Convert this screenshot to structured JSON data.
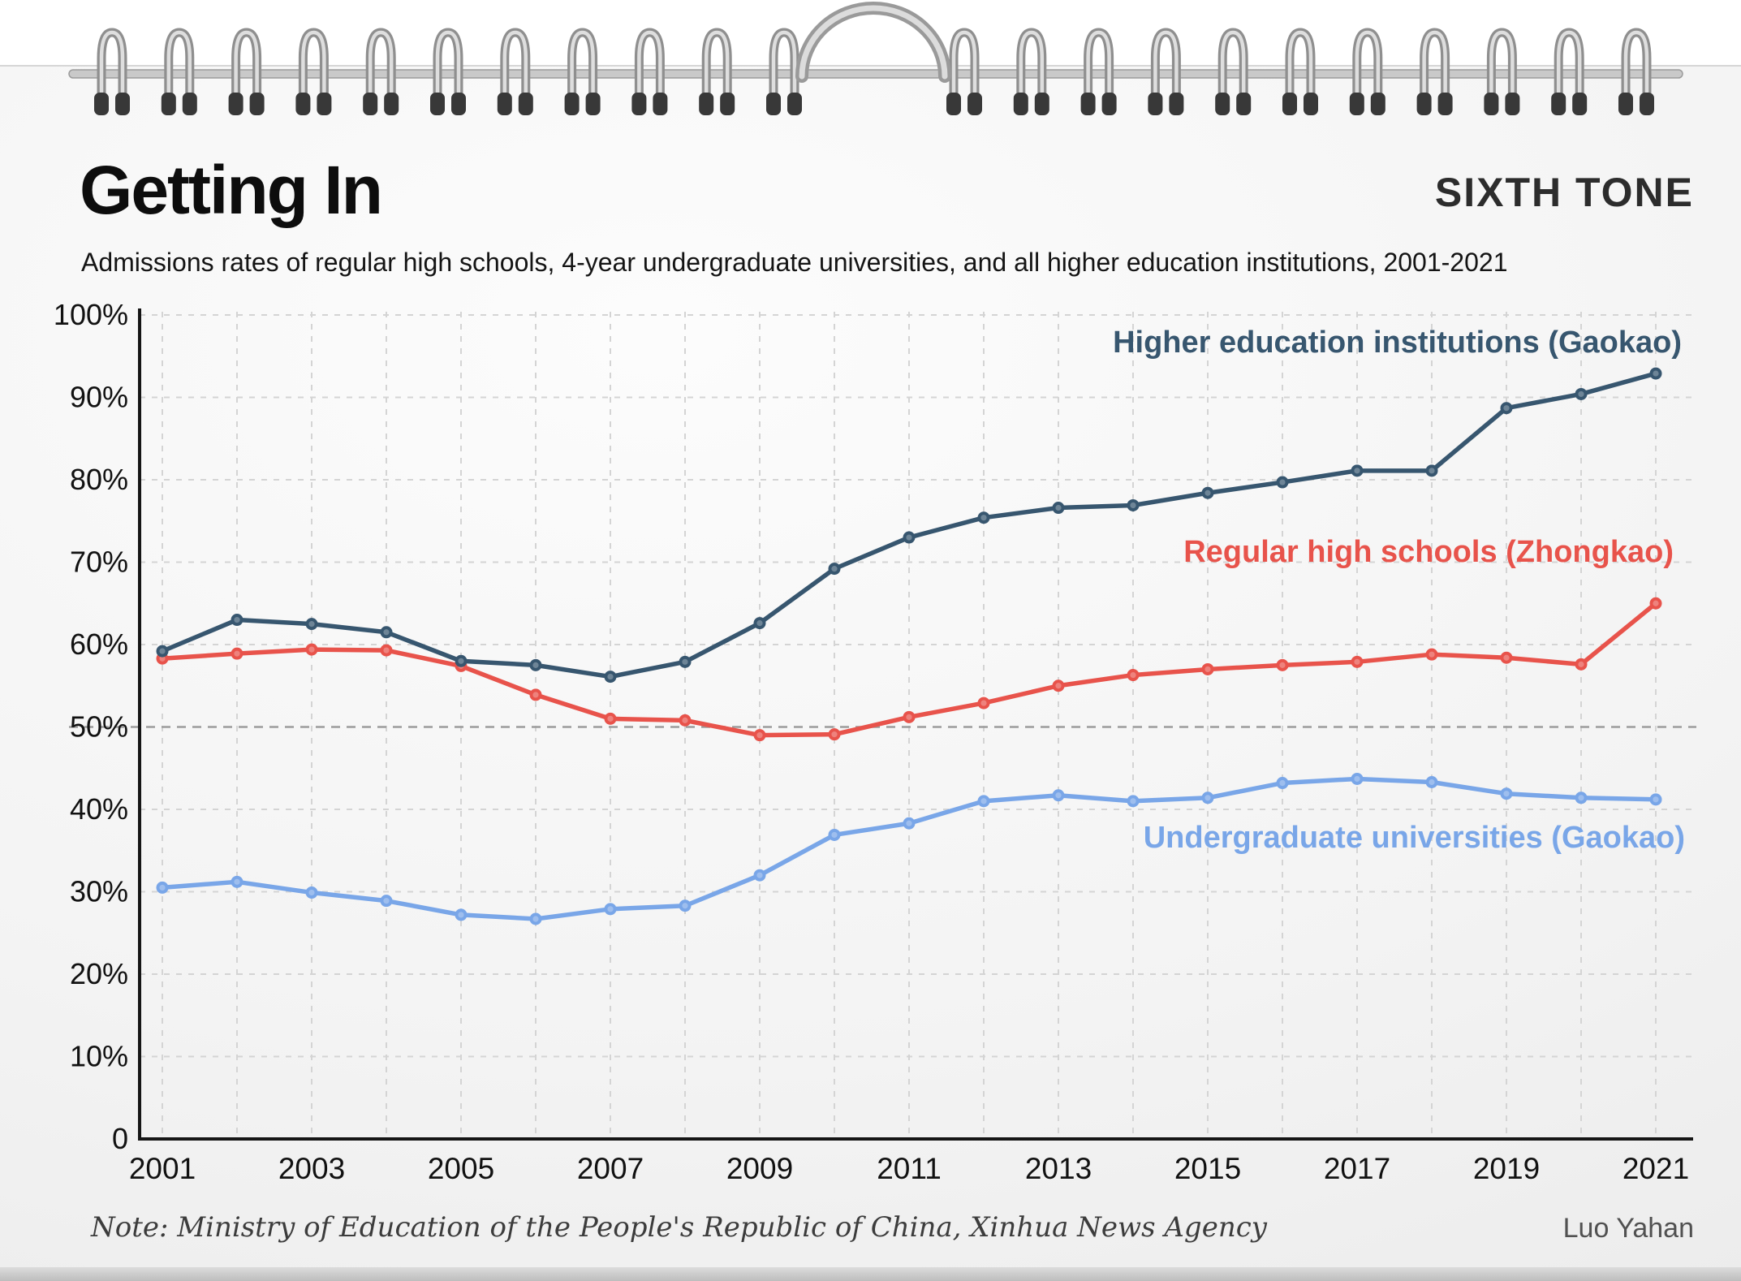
{
  "page": {
    "title": "Getting In",
    "brand": "SIXTH TONE",
    "subtitle": "Admissions rates of regular high schools, 4-year undergraduate universities, and all higher education institutions, 2001-2021",
    "note": "Note: Ministry of Education of the People's Republic of China, Xinhua News Agency",
    "credit": "Luo Yahan"
  },
  "colors": {
    "higher_education": "#37566f",
    "regular_high_school": "#e8534b",
    "undergraduate": "#79a6e8",
    "axis": "#161616",
    "grid": "#d4d4d4",
    "reference_line": "#9c9c9c"
  },
  "chart_data": {
    "type": "line",
    "title": "Getting In",
    "subtitle": "Admissions rates of regular high schools, 4-year undergraduate universities, and all higher education institutions, 2001-2021",
    "x": [
      2001,
      2002,
      2003,
      2004,
      2005,
      2006,
      2007,
      2008,
      2009,
      2010,
      2011,
      2012,
      2013,
      2014,
      2015,
      2016,
      2017,
      2018,
      2019,
      2020,
      2021
    ],
    "x_tick_labels": [
      "2001",
      "2003",
      "2005",
      "2007",
      "2009",
      "2011",
      "2013",
      "2015",
      "2017",
      "2019",
      "2021"
    ],
    "ylim": [
      0,
      100
    ],
    "y_ticks": [
      0,
      10,
      20,
      30,
      40,
      50,
      60,
      70,
      80,
      90,
      100
    ],
    "y_tick_labels": [
      "0",
      "10%",
      "20%",
      "30%",
      "40%",
      "50%",
      "60%",
      "70%",
      "80%",
      "90%",
      "100%"
    ],
    "grid": "dashed",
    "reference_line_y": 50,
    "legend_position": "inline-labels",
    "series": [
      {
        "name": "Higher education institutions (Gaokao)",
        "color": "#37566f",
        "values": [
          59.2,
          63.0,
          62.5,
          61.5,
          58.0,
          57.5,
          56.1,
          57.9,
          62.6,
          69.2,
          73.0,
          75.4,
          76.6,
          76.9,
          78.4,
          79.7,
          81.1,
          81.1,
          88.7,
          90.4,
          92.9
        ]
      },
      {
        "name": "Regular high schools (Zhongkao)",
        "color": "#e8534b",
        "values": [
          58.3,
          58.9,
          59.4,
          59.3,
          57.4,
          53.9,
          51.0,
          50.8,
          49.0,
          49.1,
          51.2,
          52.9,
          55.0,
          56.3,
          57.0,
          57.5,
          57.9,
          58.8,
          58.4,
          57.6,
          65.0
        ]
      },
      {
        "name": "Undergraduate universities (Gaokao)",
        "color": "#79a6e8",
        "values": [
          30.5,
          31.2,
          29.9,
          28.9,
          27.2,
          26.7,
          27.9,
          28.3,
          32.0,
          36.9,
          38.3,
          41.0,
          41.7,
          41.0,
          41.4,
          43.2,
          43.7,
          43.3,
          41.9,
          41.4,
          41.2
        ]
      }
    ]
  }
}
